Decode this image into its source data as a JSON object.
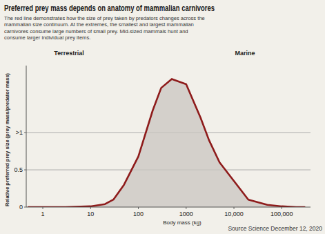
{
  "chart_data": {
    "type": "area",
    "title": "Preferred prey mass depends on anatomy of mammalian carnivores",
    "subtitle": "The red line demonstrates how the size of prey taken by predators changes across the mammalian size continuum. At the extremes, the smallest and largest mammalian carnivores consume large numbers of small prey. Mid-sized mammals hunt and consume larger individual prey items.",
    "x_label": "Body mass (kg)",
    "y_label": "Relative preferred prey size (prey mass/predator mass)",
    "annotations": [
      "Terrestrial",
      "Marine"
    ],
    "source": "Source Science December 12, 2020",
    "x": [
      0.5,
      3,
      10,
      20,
      30,
      50,
      100,
      200,
      300,
      500,
      1000,
      2000,
      3000,
      5000,
      10000,
      20000,
      50000,
      100000,
      200000,
      300000
    ],
    "series": [
      {
        "name": "Relative preferred prey size",
        "color": "#8e1b1b",
        "values": [
          0,
          0,
          0.01,
          0.04,
          0.1,
          0.3,
          0.68,
          1.3,
          1.6,
          1.72,
          1.65,
          1.2,
          0.9,
          0.6,
          0.35,
          0.1,
          0.03,
          0.01,
          0,
          0
        ]
      }
    ],
    "log": "x",
    "xlim": [
      0.45,
      400000
    ],
    "xticks": [
      1,
      10,
      100,
      1000,
      {
        "value": 10000,
        "label": "10,000"
      },
      {
        "value": 100000,
        "label": "100,000"
      }
    ],
    "ylim": [
      0,
      1.9
    ],
    "yticks": [
      0,
      0.5,
      {
        "value": 1,
        "label": ">1"
      }
    ],
    "grid": true
  }
}
